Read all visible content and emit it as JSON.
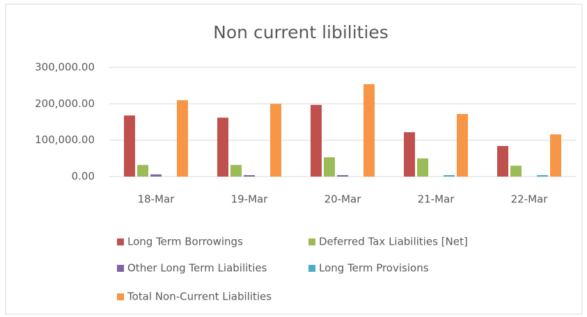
{
  "chart_data": {
    "type": "bar",
    "title": "Non current libilities",
    "categories": [
      "18-Mar",
      "19-Mar",
      "20-Mar",
      "21-Mar",
      "22-Mar"
    ],
    "series": [
      {
        "name": "Long Term Borrowings",
        "color": "#c0504d",
        "values": [
          168000,
          162000,
          197000,
          122000,
          84000
        ]
      },
      {
        "name": "Deferred Tax Liabilities [Net]",
        "color": "#9bbb59",
        "values": [
          32000,
          32000,
          53000,
          50000,
          30000
        ]
      },
      {
        "name": "Other Long Term Liabilities",
        "color": "#8064a2",
        "values": [
          6000,
          4000,
          4000,
          0,
          0
        ]
      },
      {
        "name": "Long Term Provisions",
        "color": "#4bacc6",
        "values": [
          0,
          0,
          0,
          4000,
          4000
        ]
      },
      {
        "name": "Total Non-Current Liabilities",
        "color": "#f79646",
        "values": [
          210000,
          200000,
          254000,
          172000,
          116000
        ]
      }
    ],
    "ylim": [
      0,
      300000
    ],
    "yticks": [
      {
        "value": 0,
        "label": "0.00"
      },
      {
        "value": 100000,
        "label": "100,000.00"
      },
      {
        "value": 200000,
        "label": "200,000.00"
      },
      {
        "value": 300000,
        "label": "300,000.00"
      }
    ],
    "grid": true,
    "legend": "bottom"
  }
}
